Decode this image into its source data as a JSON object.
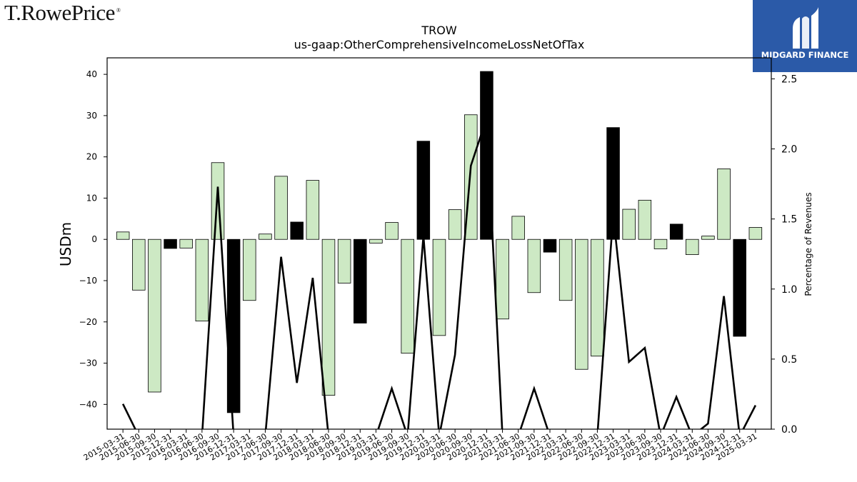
{
  "branding": {
    "left_logo": "T.RowePrice",
    "left_logo_mark": "®",
    "right_logo": "MIDGARD FINANCE"
  },
  "chart_data": {
    "type": "bar",
    "title": "TROW",
    "subtitle": "us-gaap:OtherComprehensiveIncomeLossNetOfTax",
    "ylabel": "USDm",
    "y2label": "Percentage of Revenues",
    "ylim": [
      -46,
      44
    ],
    "y2lim": [
      0,
      2.65
    ],
    "yticks": [
      -40,
      -30,
      -20,
      -10,
      0,
      10,
      20,
      30,
      40
    ],
    "y2ticks": [
      0.0,
      0.5,
      1.0,
      1.5,
      2.0,
      2.5
    ],
    "y2tick_labels": [
      "0.0",
      "0.5",
      "1.0",
      "1.5",
      "2.0",
      "2.5"
    ],
    "grid": false,
    "colors": {
      "bar_positive_growth": "#cde9c4",
      "bar_highlight": "#000000",
      "bar_edge": "#000000",
      "line": "#000000"
    },
    "categories": [
      "2015-03-31",
      "2015-06-30",
      "2015-09-30",
      "2015-12-31",
      "2016-03-31",
      "2016-06-30",
      "2016-09-30",
      "2016-12-31",
      "2017-03-31",
      "2017-06-30",
      "2017-09-30",
      "2017-12-31",
      "2018-03-31",
      "2018-06-30",
      "2018-09-30",
      "2018-12-31",
      "2019-03-31",
      "2019-06-30",
      "2019-09-30",
      "2019-12-31",
      "2020-03-31",
      "2020-06-30",
      "2020-09-30",
      "2020-12-31",
      "2021-03-31",
      "2021-06-30",
      "2021-09-30",
      "2021-12-31",
      "2022-03-31",
      "2022-06-30",
      "2022-09-30",
      "2022-12-31",
      "2023-03-31",
      "2023-06-30",
      "2023-09-30",
      "2023-12-31",
      "2024-03-31",
      "2024-06-30",
      "2024-09-30",
      "2024-12-31",
      "2025-03-31"
    ],
    "series": [
      {
        "type": "bar",
        "values": [
          1.8,
          -12.3,
          -37.0,
          -2.2,
          -2.1,
          -19.8,
          18.6,
          -42.0,
          -14.8,
          1.3,
          15.3,
          4.2,
          14.3,
          -37.8,
          -10.6,
          -20.3,
          -0.9,
          4.1,
          -27.6,
          23.8,
          -23.3,
          7.2,
          30.2,
          40.7,
          -19.3,
          5.6,
          -12.9,
          -3.1,
          -14.8,
          -31.5,
          -28.3,
          27.1,
          7.3,
          9.5,
          -2.3,
          3.7,
          -3.7,
          0.8,
          17.1,
          -23.5,
          2.9
        ],
        "highlight": [
          false,
          false,
          false,
          true,
          false,
          false,
          false,
          true,
          false,
          false,
          false,
          true,
          false,
          false,
          false,
          true,
          false,
          false,
          false,
          true,
          false,
          false,
          false,
          true,
          false,
          false,
          false,
          true,
          false,
          false,
          false,
          true,
          false,
          false,
          false,
          true,
          false,
          false,
          false,
          true,
          false
        ]
      },
      {
        "type": "line",
        "axis": "right",
        "values": [
          0.18,
          null,
          null,
          null,
          null,
          null,
          1.73,
          null,
          null,
          null,
          1.23,
          0.33,
          1.08,
          null,
          null,
          null,
          null,
          0.29,
          null,
          1.38,
          null,
          0.53,
          1.88,
          2.22,
          null,
          null,
          0.29,
          null,
          null,
          null,
          null,
          1.53,
          0.48,
          0.58,
          null,
          0.23,
          null,
          0.04,
          0.95,
          null,
          0.17
        ]
      }
    ]
  }
}
